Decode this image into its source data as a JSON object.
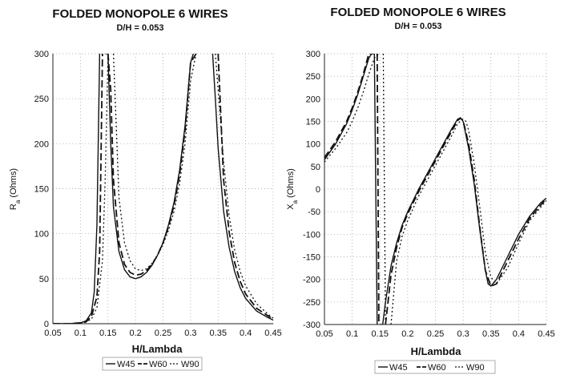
{
  "chart_data": [
    {
      "type": "line",
      "title": "FOLDED MONOPOLE 6 WIRES",
      "subtitle": "D/H = 0.053",
      "xlabel": "H/Lambda",
      "ylabel": "Ra (Ohms)",
      "ylabel_main": "R",
      "ylabel_sub": "a",
      "ylabel_rest": " (Ohms)",
      "xlim": [
        0.05,
        0.45
      ],
      "ylim": [
        0,
        300
      ],
      "x_ticks": [
        "0.05",
        "0.1",
        "0.15",
        "0.2",
        "0.25",
        "0.3",
        "0.35",
        "0.4",
        "0.45"
      ],
      "y_ticks": [
        "0",
        "50",
        "100",
        "150",
        "200",
        "250",
        "300"
      ],
      "grid": true,
      "legend_position": "bottom",
      "series": [
        {
          "name": "W45",
          "style": "solid",
          "x": [
            0.05,
            0.08,
            0.1,
            0.11,
            0.12,
            0.125,
            0.13,
            0.135,
            0.14,
            0.145,
            0.15,
            0.155,
            0.16,
            0.17,
            0.18,
            0.19,
            0.2,
            0.21,
            0.22,
            0.23,
            0.24,
            0.25,
            0.26,
            0.27,
            0.28,
            0.29,
            0.3,
            0.305,
            0.31,
            0.34,
            0.345,
            0.35,
            0.36,
            0.37,
            0.38,
            0.39,
            0.4,
            0.42,
            0.44,
            0.45
          ],
          "y": [
            0,
            0,
            1,
            3,
            12,
            35,
            110,
            300,
            null,
            300,
            300,
            200,
            130,
            80,
            60,
            52,
            50,
            52,
            57,
            65,
            76,
            90,
            110,
            135,
            170,
            220,
            290,
            300,
            null,
            300,
            250,
            195,
            125,
            85,
            58,
            40,
            28,
            14,
            7,
            4
          ]
        },
        {
          "name": "W60",
          "style": "dashed",
          "x": [
            0.05,
            0.08,
            0.1,
            0.11,
            0.12,
            0.13,
            0.135,
            0.14,
            0.145,
            0.15,
            0.155,
            0.16,
            0.17,
            0.18,
            0.19,
            0.2,
            0.21,
            0.22,
            0.23,
            0.24,
            0.25,
            0.26,
            0.27,
            0.28,
            0.29,
            0.3,
            0.31,
            0.34,
            0.35,
            0.36,
            0.37,
            0.38,
            0.39,
            0.4,
            0.42,
            0.44,
            0.45
          ],
          "y": [
            0,
            0,
            1,
            2,
            8,
            30,
            80,
            300,
            null,
            300,
            260,
            160,
            90,
            66,
            57,
            54,
            55,
            59,
            66,
            76,
            90,
            108,
            132,
            165,
            215,
            290,
            300,
            null,
            300,
            160,
            102,
            68,
            47,
            33,
            17,
            9,
            5
          ]
        },
        {
          "name": "W90",
          "style": "dotted",
          "x": [
            0.05,
            0.08,
            0.1,
            0.11,
            0.12,
            0.13,
            0.14,
            0.145,
            0.15,
            0.155,
            0.16,
            0.165,
            0.17,
            0.18,
            0.19,
            0.2,
            0.21,
            0.22,
            0.23,
            0.24,
            0.25,
            0.26,
            0.27,
            0.28,
            0.29,
            0.3,
            0.31,
            0.34,
            0.345,
            0.35,
            0.36,
            0.37,
            0.38,
            0.39,
            0.4,
            0.42,
            0.44,
            0.45
          ],
          "y": [
            0,
            0,
            1,
            2,
            5,
            18,
            70,
            160,
            300,
            null,
            300,
            220,
            140,
            90,
            70,
            61,
            59,
            61,
            67,
            76,
            88,
            104,
            125,
            155,
            200,
            270,
            300,
            null,
            300,
            260,
            180,
            120,
            82,
            58,
            42,
            22,
            11,
            6
          ]
        }
      ]
    },
    {
      "type": "line",
      "title": "FOLDED MONOPOLE 6 WIRES",
      "subtitle": "D/H = 0.053",
      "xlabel": "H/Lambda",
      "ylabel": "Xa (Ohms)",
      "ylabel_main": "X",
      "ylabel_sub": "a",
      "ylabel_rest": " (Ohms)",
      "xlim": [
        0.05,
        0.45
      ],
      "ylim": [
        -300,
        300
      ],
      "x_ticks": [
        "0.05",
        "0.1",
        "0.15",
        "0.2",
        "0.25",
        "0.3",
        "0.35",
        "0.4",
        "0.45"
      ],
      "y_ticks": [
        "-300",
        "-250",
        "-200",
        "-150",
        "-100",
        "-50",
        "0",
        "50",
        "100",
        "150",
        "200",
        "250",
        "300"
      ],
      "grid": true,
      "legend_position": "bottom",
      "series": [
        {
          "name": "W45",
          "style": "solid",
          "x": [
            0.05,
            0.07,
            0.09,
            0.1,
            0.11,
            0.12,
            0.13,
            0.135,
            0.138,
            0.14,
            0.145,
            0.146,
            0.15,
            0.155,
            0.16,
            0.17,
            0.18,
            0.19,
            0.2,
            0.22,
            0.24,
            0.26,
            0.28,
            0.29,
            0.295,
            0.3,
            0.31,
            0.32,
            0.33,
            0.34,
            0.345,
            0.35,
            0.36,
            0.38,
            0.4,
            0.42,
            0.44,
            0.45
          ],
          "y": [
            65,
            100,
            145,
            175,
            210,
            250,
            290,
            300,
            null,
            300,
            -300,
            null,
            -300,
            -300,
            -250,
            -170,
            -120,
            -80,
            -50,
            0,
            45,
            90,
            135,
            155,
            158,
            150,
            90,
            10,
            -90,
            -180,
            -210,
            -215,
            -200,
            -150,
            -100,
            -60,
            -30,
            -20
          ]
        },
        {
          "name": "W60",
          "style": "dashed",
          "x": [
            0.05,
            0.07,
            0.09,
            0.1,
            0.11,
            0.12,
            0.13,
            0.14,
            0.143,
            0.145,
            0.148,
            0.15,
            0.16,
            0.17,
            0.18,
            0.19,
            0.2,
            0.22,
            0.24,
            0.26,
            0.28,
            0.29,
            0.295,
            0.3,
            0.31,
            0.32,
            0.33,
            0.34,
            0.35,
            0.36,
            0.38,
            0.4,
            0.42,
            0.44,
            0.45
          ],
          "y": [
            70,
            105,
            150,
            180,
            215,
            255,
            300,
            300,
            null,
            300,
            -300,
            null,
            -300,
            -190,
            -130,
            -85,
            -55,
            -5,
            40,
            85,
            130,
            152,
            157,
            152,
            100,
            20,
            -85,
            -180,
            -215,
            -210,
            -160,
            -110,
            -65,
            -35,
            -22
          ]
        },
        {
          "name": "W90",
          "style": "dotted",
          "x": [
            0.05,
            0.07,
            0.09,
            0.1,
            0.11,
            0.12,
            0.13,
            0.14,
            0.148,
            0.15,
            0.156,
            0.16,
            0.165,
            0.17,
            0.18,
            0.19,
            0.2,
            0.22,
            0.24,
            0.26,
            0.28,
            0.29,
            0.3,
            0.305,
            0.31,
            0.32,
            0.33,
            0.34,
            0.35,
            0.36,
            0.38,
            0.4,
            0.42,
            0.44,
            0.45
          ],
          "y": [
            60,
            90,
            125,
            150,
            180,
            215,
            255,
            290,
            300,
            null,
            300,
            -300,
            null,
            -300,
            -160,
            -105,
            -70,
            -15,
            30,
            75,
            120,
            145,
            155,
            150,
            130,
            55,
            -40,
            -140,
            -195,
            -210,
            -175,
            -120,
            -70,
            -40,
            -25
          ]
        }
      ]
    }
  ],
  "legend_separator": "-"
}
